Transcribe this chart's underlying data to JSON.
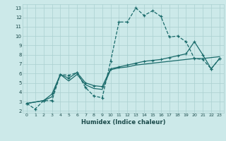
{
  "xlabel": "Humidex (Indice chaleur)",
  "xlim": [
    -0.5,
    23.5
  ],
  "ylim": [
    1.8,
    13.4
  ],
  "yticks": [
    2,
    3,
    4,
    5,
    6,
    7,
    8,
    9,
    10,
    11,
    12,
    13
  ],
  "xticks": [
    0,
    1,
    2,
    3,
    4,
    5,
    6,
    7,
    8,
    9,
    10,
    11,
    12,
    13,
    14,
    15,
    16,
    17,
    18,
    19,
    20,
    21,
    22,
    23
  ],
  "bg_color": "#cce9e9",
  "grid_color": "#aad0d0",
  "line_color": "#1a6b6b",
  "line1_x": [
    0,
    1,
    2,
    3,
    4,
    5,
    6,
    7,
    8,
    9,
    10,
    11,
    12,
    13,
    14,
    15,
    16,
    17,
    18,
    19,
    20,
    21,
    22,
    23
  ],
  "line1_y": [
    2.8,
    2.2,
    3.1,
    3.1,
    5.9,
    5.8,
    6.1,
    4.5,
    3.6,
    3.4,
    7.3,
    11.5,
    11.5,
    13.0,
    12.2,
    12.7,
    12.1,
    9.9,
    10.0,
    9.4,
    7.6,
    7.5,
    6.5,
    7.6
  ],
  "line2_x": [
    0,
    2,
    3,
    4,
    5,
    6,
    7,
    8,
    9,
    10,
    11,
    12,
    13,
    14,
    15,
    16,
    17,
    18,
    19,
    20,
    21,
    22,
    23
  ],
  "line2_y": [
    2.8,
    3.1,
    3.5,
    5.9,
    5.2,
    5.9,
    4.8,
    4.4,
    4.3,
    6.4,
    6.6,
    6.7,
    6.9,
    7.0,
    7.1,
    7.2,
    7.3,
    7.4,
    7.5,
    7.6,
    7.6,
    7.7,
    7.8
  ],
  "line3_x": [
    0,
    2,
    3,
    4,
    5,
    6,
    7,
    8,
    9,
    10,
    11,
    12,
    13,
    14,
    15,
    16,
    17,
    18,
    19,
    20,
    21,
    22,
    23
  ],
  "line3_y": [
    2.8,
    3.1,
    3.8,
    5.9,
    5.5,
    6.1,
    5.0,
    4.7,
    4.6,
    6.5,
    6.7,
    6.9,
    7.1,
    7.3,
    7.4,
    7.5,
    7.7,
    7.9,
    8.1,
    9.4,
    8.0,
    6.5,
    7.6
  ]
}
